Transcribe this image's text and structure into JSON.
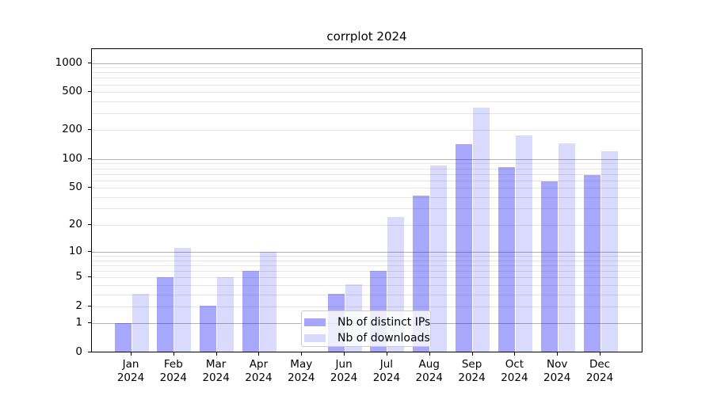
{
  "chart_data": {
    "type": "bar",
    "title": "corrplot 2024",
    "categories": [
      "Jan",
      "Feb",
      "Mar",
      "Apr",
      "May",
      "Jun",
      "Jul",
      "Aug",
      "Sep",
      "Oct",
      "Nov",
      "Dec"
    ],
    "year": "2024",
    "series": [
      {
        "name": "Nb of distinct IPs",
        "values": [
          1,
          5,
          2,
          6,
          0,
          3,
          6,
          41,
          141,
          82,
          58,
          68
        ],
        "color": "rgba(10,10,245,0.36)",
        "swatch": "#a6a6fb"
      },
      {
        "name": "Nb of downloads",
        "values": [
          3,
          11,
          5,
          10,
          0,
          4,
          24,
          85,
          340,
          175,
          145,
          120
        ],
        "color": "rgba(10,10,245,0.15)",
        "swatch": "#d9d9fd"
      }
    ],
    "y_ticks": [
      0,
      1,
      2,
      5,
      10,
      20,
      50,
      100,
      200,
      500,
      1000
    ],
    "y_scale": "log1p",
    "ylim": [
      0,
      1380
    ],
    "xlabel": "",
    "ylabel": "",
    "grid": "both",
    "grid_major_at": [
      1,
      10,
      100,
      1000
    ],
    "legend_position": "lower-center",
    "colors": {
      "grid_major": "#b2b2b2",
      "grid_minor": "#e7e7e7",
      "spine": "#000000",
      "background": "#ffffff"
    }
  }
}
